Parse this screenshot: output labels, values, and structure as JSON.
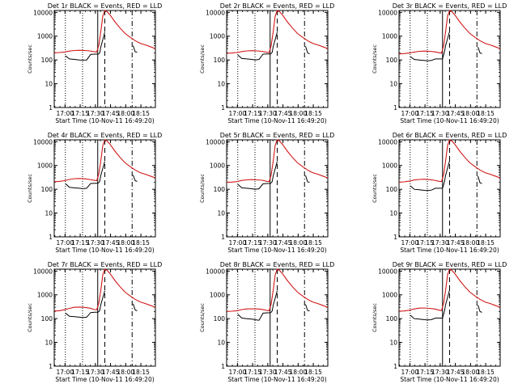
{
  "chart_data": {
    "type": "line",
    "ylabel": "Counts/sec",
    "xlabel": "Start Time (10-Nov-11 16:49:20)",
    "xticks": [
      "17:00",
      "17:15",
      "17:30",
      "17:45",
      "18:00",
      "18:15"
    ],
    "yticks": [
      "1",
      "10",
      "100",
      "1000",
      "10000"
    ],
    "yscale": "log",
    "ylim": [
      1,
      12000
    ],
    "xlim_minutes_after_16_49_20": [
      0,
      100
    ],
    "legend_colors": {
      "events": "#000000",
      "lld": "#d01818"
    },
    "markers_minutes_after_16_49_20": {
      "dotted": [
        11,
        28
      ],
      "solid": [
        43
      ],
      "dashed": [
        50
      ],
      "dashdot": [
        77
      ]
    },
    "panels": [
      {
        "title": "Det 1r BLACK = Events, RED = LLD",
        "events_x": [
          11,
          12,
          15,
          20,
          25,
          28,
          32,
          36,
          40,
          43,
          44,
          45,
          46,
          48,
          50
        ],
        "events_y": [
          150,
          140,
          110,
          105,
          100,
          98,
          100,
          170,
          175,
          175,
          180,
          200,
          350,
          700,
          1500
        ],
        "events2_x": [
          78,
          80,
          81,
          82
        ],
        "events2_y": [
          400,
          220,
          215,
          210
        ],
        "lld_x": [
          0,
          5,
          10,
          15,
          20,
          25,
          30,
          35,
          40,
          42,
          44,
          46,
          48,
          50,
          52,
          55,
          60,
          65,
          70,
          75,
          80,
          85,
          90,
          95,
          100
        ],
        "lld_y": [
          200,
          205,
          215,
          235,
          250,
          255,
          250,
          240,
          220,
          215,
          400,
          1500,
          7000,
          12000,
          11000,
          8000,
          4000,
          2200,
          1300,
          900,
          650,
          500,
          430,
          360,
          300
        ]
      },
      {
        "title": "Det 2r BLACK = Events, RED = LLD",
        "events_x": [
          11,
          12,
          15,
          20,
          25,
          28,
          32,
          36,
          40,
          43,
          44,
          45,
          46,
          48,
          50
        ],
        "events_y": [
          160,
          150,
          115,
          110,
          105,
          100,
          105,
          175,
          180,
          180,
          185,
          210,
          360,
          720,
          1500
        ],
        "events2_x": [
          78,
          80,
          81,
          82
        ],
        "events2_y": [
          380,
          200,
          190,
          180
        ],
        "lld_x": [
          0,
          5,
          10,
          15,
          20,
          25,
          30,
          35,
          40,
          42,
          44,
          46,
          48,
          50,
          52,
          55,
          60,
          65,
          70,
          75,
          80,
          85,
          90,
          95,
          100
        ],
        "lld_y": [
          190,
          195,
          205,
          225,
          240,
          245,
          240,
          230,
          210,
          205,
          400,
          1500,
          7000,
          12000,
          11000,
          8000,
          4000,
          2200,
          1300,
          900,
          650,
          500,
          430,
          360,
          300
        ]
      },
      {
        "title": "Det 3r BLACK = Events, RED = LLD",
        "events_x": [
          11,
          12,
          15,
          20,
          25,
          28,
          32,
          36,
          40,
          43,
          44,
          45,
          46,
          48,
          50
        ],
        "events_y": [
          140,
          130,
          105,
          100,
          95,
          92,
          95,
          110,
          110,
          110,
          160,
          230,
          400,
          800,
          1600
        ],
        "events2_x": [
          78,
          80,
          81,
          82
        ],
        "events2_y": [
          350,
          200,
          190,
          185
        ],
        "lld_x": [
          0,
          5,
          10,
          15,
          20,
          25,
          30,
          35,
          40,
          42,
          44,
          46,
          48,
          50,
          52,
          55,
          60,
          65,
          70,
          75,
          80,
          85,
          90,
          95,
          100
        ],
        "lld_y": [
          180,
          185,
          195,
          215,
          230,
          235,
          230,
          220,
          200,
          195,
          380,
          1500,
          7000,
          12000,
          11000,
          8000,
          4000,
          2200,
          1300,
          900,
          650,
          500,
          430,
          360,
          300
        ]
      },
      {
        "title": "Det 4r BLACK = Events, RED = LLD",
        "events_x": [
          11,
          12,
          15,
          20,
          25,
          28,
          32,
          36,
          40,
          43,
          44,
          45,
          46,
          48,
          50
        ],
        "events_y": [
          170,
          160,
          120,
          115,
          110,
          105,
          110,
          175,
          180,
          180,
          190,
          220,
          380,
          750,
          1500
        ],
        "events2_x": [
          78,
          80,
          81,
          82
        ],
        "events2_y": [
          400,
          230,
          220,
          215
        ],
        "lld_x": [
          0,
          5,
          10,
          15,
          20,
          25,
          30,
          35,
          40,
          42,
          44,
          46,
          48,
          50,
          52,
          55,
          60,
          65,
          70,
          75,
          80,
          85,
          90,
          95,
          100
        ],
        "lld_y": [
          210,
          215,
          230,
          260,
          280,
          285,
          275,
          260,
          235,
          230,
          420,
          1500,
          7000,
          12000,
          11000,
          8000,
          4000,
          2200,
          1300,
          900,
          650,
          500,
          430,
          360,
          300
        ]
      },
      {
        "title": "Det 5r BLACK = Events, RED = LLD",
        "events_x": [
          11,
          12,
          15,
          20,
          25,
          28,
          32,
          36,
          40,
          43,
          44,
          45,
          46,
          48,
          50
        ],
        "events_y": [
          160,
          150,
          115,
          110,
          105,
          100,
          105,
          170,
          175,
          175,
          185,
          210,
          360,
          720,
          1500
        ],
        "events2_x": [
          78,
          80,
          81,
          82
        ],
        "events2_y": [
          380,
          210,
          200,
          195
        ],
        "lld_x": [
          0,
          5,
          10,
          15,
          20,
          25,
          30,
          35,
          40,
          42,
          44,
          46,
          48,
          50,
          52,
          55,
          60,
          65,
          70,
          75,
          80,
          85,
          90,
          95,
          100
        ],
        "lld_y": [
          195,
          200,
          210,
          235,
          250,
          255,
          250,
          240,
          215,
          210,
          400,
          1500,
          7000,
          12000,
          11000,
          8000,
          4000,
          2200,
          1300,
          900,
          650,
          500,
          430,
          360,
          300
        ]
      },
      {
        "title": "Det 6r BLACK = Events, RED = LLD",
        "events_x": [
          11,
          12,
          15,
          20,
          25,
          28,
          32,
          36,
          40,
          43,
          44,
          45,
          46,
          48,
          50
        ],
        "events_y": [
          140,
          130,
          100,
          95,
          90,
          88,
          92,
          110,
          110,
          110,
          150,
          220,
          380,
          780,
          1600
        ],
        "events2_x": [
          78,
          80,
          81,
          82
        ],
        "events2_y": [
          360,
          190,
          180,
          175
        ],
        "lld_x": [
          0,
          5,
          10,
          15,
          20,
          25,
          30,
          35,
          40,
          42,
          44,
          46,
          48,
          50,
          52,
          55,
          60,
          65,
          70,
          75,
          80,
          85,
          90,
          95,
          100
        ],
        "lld_y": [
          200,
          205,
          220,
          245,
          260,
          265,
          255,
          240,
          215,
          210,
          400,
          1500,
          7000,
          12000,
          11000,
          8000,
          4000,
          2200,
          1300,
          900,
          650,
          500,
          430,
          360,
          300
        ]
      },
      {
        "title": "Det 7r BLACK = Events, RED = LLD",
        "events_x": [
          11,
          12,
          15,
          20,
          25,
          28,
          32,
          36,
          40,
          43,
          44,
          45,
          46,
          48,
          50
        ],
        "events_y": [
          170,
          160,
          125,
          120,
          115,
          110,
          115,
          180,
          185,
          185,
          195,
          225,
          380,
          750,
          1500
        ],
        "events2_x": [
          78,
          80,
          81,
          82
        ],
        "events2_y": [
          420,
          230,
          220,
          215
        ],
        "lld_x": [
          0,
          5,
          10,
          15,
          20,
          25,
          30,
          35,
          40,
          42,
          44,
          46,
          48,
          50,
          52,
          55,
          60,
          65,
          70,
          75,
          80,
          85,
          90,
          95,
          100
        ],
        "lld_y": [
          210,
          215,
          235,
          270,
          300,
          305,
          295,
          275,
          240,
          235,
          430,
          1500,
          7000,
          12000,
          11000,
          8000,
          4000,
          2200,
          1300,
          900,
          650,
          500,
          430,
          360,
          300
        ]
      },
      {
        "title": "Det 8r BLACK = Events, RED = LLD",
        "events_x": [
          11,
          12,
          15,
          20,
          25,
          28,
          32,
          36,
          40,
          43,
          44,
          45,
          46,
          48,
          50
        ],
        "events_y": [
          150,
          140,
          105,
          100,
          95,
          90,
          85,
          170,
          175,
          175,
          185,
          210,
          360,
          720,
          1500
        ],
        "events2_x": [
          78,
          80,
          81,
          82
        ],
        "events2_y": [
          400,
          220,
          215,
          210
        ],
        "lld_x": [
          0,
          5,
          10,
          15,
          20,
          25,
          30,
          35,
          40,
          42,
          44,
          46,
          48,
          50,
          52,
          55,
          60,
          65,
          70,
          75,
          80,
          85,
          90,
          95,
          100
        ],
        "lld_y": [
          200,
          205,
          215,
          240,
          255,
          260,
          255,
          245,
          220,
          215,
          410,
          1500,
          7000,
          12000,
          11000,
          8000,
          4000,
          2200,
          1300,
          900,
          650,
          500,
          430,
          360,
          300
        ]
      },
      {
        "title": "Det 9r BLACK = Events, RED = LLD",
        "events_x": [
          11,
          12,
          15,
          20,
          25,
          28,
          32,
          36,
          40,
          43,
          44,
          45,
          46,
          48,
          50
        ],
        "events_y": [
          140,
          130,
          100,
          95,
          90,
          88,
          90,
          105,
          105,
          105,
          150,
          220,
          380,
          780,
          1600
        ],
        "events2_x": [
          78,
          80,
          81,
          82
        ],
        "events2_y": [
          370,
          200,
          190,
          185
        ],
        "lld_x": [
          0,
          5,
          10,
          15,
          20,
          25,
          30,
          35,
          40,
          42,
          44,
          46,
          48,
          50,
          52,
          55,
          60,
          65,
          70,
          75,
          80,
          85,
          90,
          95,
          100
        ],
        "lld_y": [
          205,
          210,
          225,
          255,
          275,
          280,
          270,
          255,
          225,
          220,
          420,
          1500,
          7000,
          12000,
          11000,
          8000,
          4000,
          2200,
          1300,
          900,
          650,
          500,
          430,
          360,
          300
        ]
      }
    ]
  }
}
